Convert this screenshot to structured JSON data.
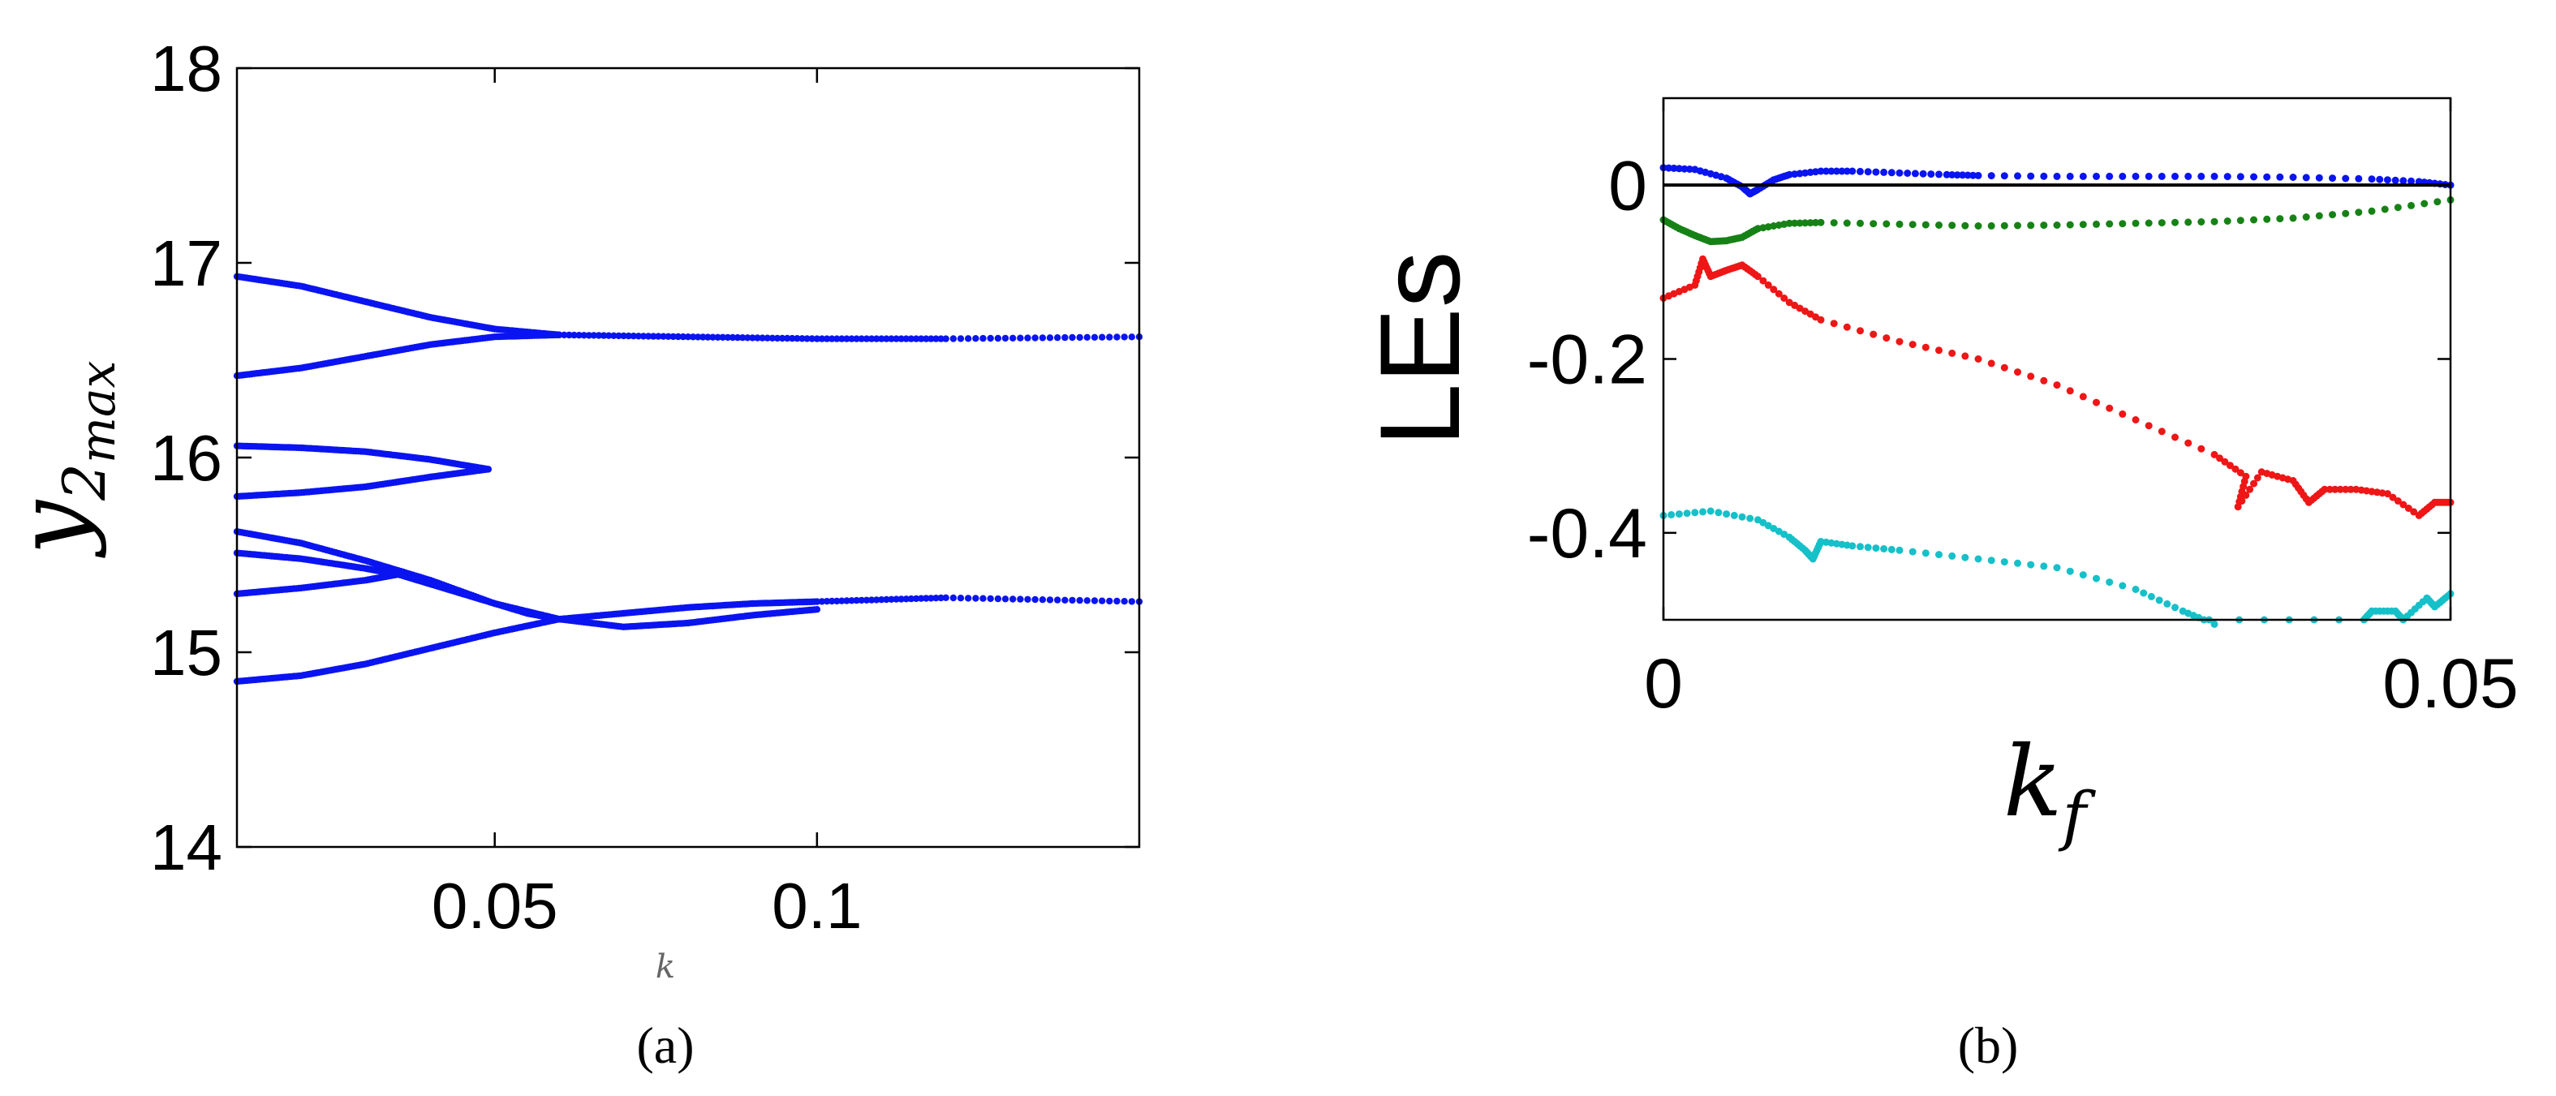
{
  "chart_data": [
    {
      "type": "scatter",
      "panel_label": "(a)",
      "xlabel": "k",
      "ylabel": {
        "base": "y",
        "sub": "2",
        "subsub": "max"
      },
      "xlim": [
        0.01,
        0.15
      ],
      "ylim": [
        14,
        18
      ],
      "xticks": [
        0.05,
        0.1
      ],
      "xtick_labels": [
        "0.05",
        "0.1"
      ],
      "yticks": [
        14,
        15,
        16,
        17,
        18
      ],
      "ytick_labels": [
        "14",
        "15",
        "16",
        "17",
        "18"
      ],
      "grid": false,
      "marker_color": "#0a14f0",
      "branches": [
        {
          "points": [
            [
              0.01,
              16.93
            ],
            [
              0.02,
              16.88
            ],
            [
              0.03,
              16.8
            ],
            [
              0.04,
              16.72
            ],
            [
              0.05,
              16.66
            ],
            [
              0.06,
              16.63
            ]
          ]
        },
        {
          "points": [
            [
              0.01,
              16.42
            ],
            [
              0.02,
              16.46
            ],
            [
              0.03,
              16.52
            ],
            [
              0.04,
              16.58
            ],
            [
              0.05,
              16.62
            ],
            [
              0.06,
              16.63
            ]
          ]
        },
        {
          "points": [
            [
              0.06,
              16.63
            ],
            [
              0.08,
              16.62
            ],
            [
              0.1,
              16.61
            ],
            [
              0.12,
              16.61
            ],
            [
              0.15,
              16.62
            ]
          ]
        },
        {
          "points": [
            [
              0.01,
              16.06
            ],
            [
              0.02,
              16.05
            ],
            [
              0.03,
              16.03
            ],
            [
              0.04,
              15.99
            ],
            [
              0.049,
              15.94
            ]
          ]
        },
        {
          "points": [
            [
              0.01,
              15.8
            ],
            [
              0.02,
              15.82
            ],
            [
              0.03,
              15.85
            ],
            [
              0.04,
              15.9
            ],
            [
              0.049,
              15.94
            ]
          ]
        },
        {
          "points": [
            [
              0.01,
              15.62
            ],
            [
              0.02,
              15.56
            ],
            [
              0.03,
              15.47
            ],
            [
              0.04,
              15.37
            ],
            [
              0.05,
              15.25
            ],
            [
              0.06,
              15.17
            ]
          ]
        },
        {
          "points": [
            [
              0.01,
              15.51
            ],
            [
              0.02,
              15.48
            ],
            [
              0.03,
              15.43
            ],
            [
              0.035,
              15.4
            ]
          ]
        },
        {
          "points": [
            [
              0.01,
              15.3
            ],
            [
              0.02,
              15.33
            ],
            [
              0.03,
              15.37
            ],
            [
              0.035,
              15.4
            ],
            [
              0.045,
              15.3
            ],
            [
              0.055,
              15.2
            ],
            [
              0.06,
              15.17
            ]
          ]
        },
        {
          "points": [
            [
              0.01,
              14.85
            ],
            [
              0.02,
              14.88
            ],
            [
              0.03,
              14.94
            ],
            [
              0.04,
              15.02
            ],
            [
              0.05,
              15.1
            ],
            [
              0.06,
              15.17
            ]
          ]
        },
        {
          "points": [
            [
              0.06,
              15.17
            ],
            [
              0.07,
              15.2
            ],
            [
              0.08,
              15.23
            ],
            [
              0.09,
              15.25
            ],
            [
              0.1,
              15.26
            ],
            [
              0.12,
              15.28
            ],
            [
              0.15,
              15.26
            ]
          ]
        },
        {
          "points": [
            [
              0.06,
              15.17
            ],
            [
              0.07,
              15.13
            ],
            [
              0.08,
              15.15
            ],
            [
              0.09,
              15.19
            ],
            [
              0.1,
              15.22
            ]
          ]
        }
      ]
    },
    {
      "type": "scatter",
      "panel_label": "(b)",
      "xlabel": {
        "base": "k",
        "sub": "f"
      },
      "ylabel": "LEs",
      "xlim": [
        0,
        0.05
      ],
      "ylim": [
        -0.5,
        0.1
      ],
      "xticks": [
        0,
        0.05
      ],
      "xtick_labels": [
        "0",
        "0.05"
      ],
      "yticks": [
        0,
        -0.2,
        -0.4
      ],
      "ytick_labels": [
        "0",
        "-0.2",
        "-0.4"
      ],
      "grid": false,
      "zero_line": {
        "y": 0,
        "color": "#000000"
      },
      "series": [
        {
          "color": "#0a14f0",
          "points": [
            [
              0,
              0.02
            ],
            [
              0.002,
              0.018
            ],
            [
              0.004,
              0.008
            ],
            [
              0.005,
              -0.002
            ],
            [
              0.0055,
              -0.01
            ],
            [
              0.006,
              -0.005
            ],
            [
              0.007,
              0.006
            ],
            [
              0.008,
              0.012
            ],
            [
              0.01,
              0.016
            ],
            [
              0.012,
              0.016
            ],
            [
              0.015,
              0.014
            ],
            [
              0.018,
              0.012
            ],
            [
              0.02,
              0.011
            ],
            [
              0.025,
              0.01
            ],
            [
              0.03,
              0.01
            ],
            [
              0.035,
              0.01
            ],
            [
              0.04,
              0.009
            ],
            [
              0.045,
              0.007
            ],
            [
              0.048,
              0.004
            ],
            [
              0.05,
              0.0
            ]
          ]
        },
        {
          "color": "#168216",
          "points": [
            [
              0,
              -0.04
            ],
            [
              0.001,
              -0.05
            ],
            [
              0.002,
              -0.058
            ],
            [
              0.003,
              -0.065
            ],
            [
              0.004,
              -0.064
            ],
            [
              0.005,
              -0.06
            ],
            [
              0.006,
              -0.05
            ],
            [
              0.008,
              -0.044
            ],
            [
              0.01,
              -0.043
            ],
            [
              0.015,
              -0.045
            ],
            [
              0.02,
              -0.047
            ],
            [
              0.025,
              -0.046
            ],
            [
              0.03,
              -0.044
            ],
            [
              0.035,
              -0.042
            ],
            [
              0.04,
              -0.038
            ],
            [
              0.045,
              -0.03
            ],
            [
              0.05,
              -0.017
            ]
          ]
        },
        {
          "color": "#ee1616",
          "points": [
            [
              0,
              -0.13
            ],
            [
              0.002,
              -0.115
            ],
            [
              0.0025,
              -0.085
            ],
            [
              0.003,
              -0.105
            ],
            [
              0.004,
              -0.098
            ],
            [
              0.005,
              -0.092
            ],
            [
              0.006,
              -0.105
            ],
            [
              0.008,
              -0.135
            ],
            [
              0.01,
              -0.155
            ],
            [
              0.015,
              -0.18
            ],
            [
              0.02,
              -0.2
            ],
            [
              0.025,
              -0.23
            ],
            [
              0.03,
              -0.27
            ],
            [
              0.035,
              -0.31
            ],
            [
              0.037,
              -0.335
            ],
            [
              0.0365,
              -0.37
            ],
            [
              0.038,
              -0.33
            ],
            [
              0.04,
              -0.34
            ],
            [
              0.041,
              -0.365
            ],
            [
              0.042,
              -0.35
            ],
            [
              0.044,
              -0.35
            ],
            [
              0.046,
              -0.355
            ],
            [
              0.048,
              -0.38
            ],
            [
              0.049,
              -0.365
            ],
            [
              0.05,
              -0.365
            ]
          ]
        },
        {
          "color": "#16c0c8",
          "points": [
            [
              0,
              -0.38
            ],
            [
              0.003,
              -0.375
            ],
            [
              0.006,
              -0.385
            ],
            [
              0.008,
              -0.405
            ],
            [
              0.009,
              -0.42
            ],
            [
              0.0095,
              -0.43
            ],
            [
              0.01,
              -0.41
            ],
            [
              0.012,
              -0.415
            ],
            [
              0.015,
              -0.42
            ],
            [
              0.02,
              -0.43
            ],
            [
              0.025,
              -0.44
            ],
            [
              0.03,
              -0.465
            ],
            [
              0.033,
              -0.49
            ],
            [
              0.035,
              -0.505
            ],
            [
              0.0445,
              -0.5
            ],
            [
              0.045,
              -0.49
            ],
            [
              0.0465,
              -0.49
            ],
            [
              0.047,
              -0.5
            ],
            [
              0.0485,
              -0.475
            ],
            [
              0.049,
              -0.485
            ],
            [
              0.05,
              -0.47
            ]
          ]
        }
      ]
    }
  ]
}
